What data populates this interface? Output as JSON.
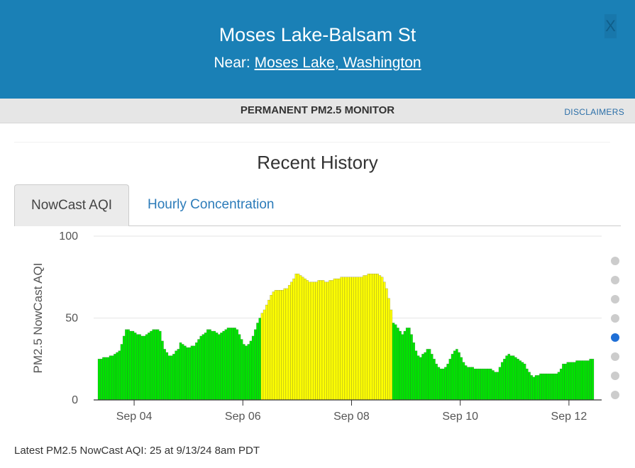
{
  "header": {
    "title": "Moses Lake-Balsam St",
    "near_prefix": "Near:",
    "near_link": "Moses Lake, Washington",
    "close_label": "X"
  },
  "subheader": {
    "monitor_type": "PERMANENT PM2.5 MONITOR",
    "disclaimers": "DISCLAIMERS"
  },
  "section_title": "Recent History",
  "tabs": [
    {
      "label": "NowCast AQI",
      "active": true
    },
    {
      "label": "Hourly Concentration",
      "active": false
    }
  ],
  "carousel": {
    "count": 8,
    "active_index": 4
  },
  "colors": {
    "header_bg": "#1a80b6",
    "good": "#00e400",
    "moderate": "#ffff00",
    "active_dot": "#1f6fd6"
  },
  "chart_data": {
    "type": "bar",
    "ylabel": "PM2.5 NowCast AQI",
    "ylim": [
      0,
      100
    ],
    "yticks": [
      0,
      50,
      100
    ],
    "x_tick_labels": [
      "Sep 04",
      "Sep 06",
      "Sep 08",
      "Sep 10",
      "Sep 12"
    ],
    "x_tick_positions": [
      16,
      64,
      112,
      160,
      208
    ],
    "grid": true,
    "legend": "none",
    "series": [
      {
        "values": [
          25,
          25,
          26,
          26,
          26,
          27,
          27,
          28,
          29,
          30,
          34,
          39,
          43,
          43,
          42,
          42,
          41,
          40,
          40,
          39,
          39,
          40,
          41,
          42,
          43,
          43,
          43,
          42,
          36,
          31,
          29,
          27,
          27,
          28,
          30,
          31,
          35,
          34,
          33,
          32,
          32,
          33,
          33,
          35,
          37,
          39,
          40,
          41,
          43,
          43,
          42,
          42,
          41,
          40,
          41,
          42,
          43,
          44,
          44,
          44,
          44,
          43,
          40,
          37,
          34,
          33,
          34,
          36,
          39,
          43,
          47,
          50,
          53,
          55,
          58,
          61,
          64,
          66,
          67,
          67,
          67,
          67,
          68,
          68,
          70,
          72,
          74,
          77,
          77,
          76,
          75,
          74,
          73,
          72,
          72,
          72,
          72,
          73,
          73,
          73,
          72,
          72,
          73,
          73,
          74,
          74,
          74,
          75,
          75,
          75,
          75,
          75,
          75,
          75,
          75,
          75,
          75,
          76,
          76,
          77,
          77,
          77,
          77,
          77,
          76,
          75,
          72,
          68,
          62,
          55,
          47,
          46,
          44,
          42,
          40,
          42,
          44,
          44,
          40,
          35,
          30,
          27,
          26,
          28,
          29,
          31,
          31,
          28,
          25,
          22,
          20,
          19,
          19,
          20,
          22,
          25,
          28,
          30,
          31,
          29,
          26,
          23,
          21,
          20,
          20,
          20,
          19,
          19,
          19,
          19,
          19,
          19,
          19,
          19,
          18,
          17,
          17,
          20,
          23,
          25,
          27,
          28,
          27,
          27,
          26,
          25,
          24,
          23,
          22,
          19,
          17,
          15,
          14,
          15,
          15,
          16,
          16,
          16,
          16,
          16,
          16,
          16,
          16,
          17,
          19,
          22,
          22,
          23,
          23,
          23,
          23,
          24,
          24,
          24,
          24,
          24,
          24,
          25,
          25
        ]
      }
    ],
    "categories": {
      "Good": {
        "range": [
          0,
          50
        ],
        "color": "#00e400"
      },
      "Moderate": {
        "range": [
          51,
          100
        ],
        "color": "#ffff00"
      }
    }
  },
  "latest": "Latest PM2.5 NowCast AQI: 25 at 9/13/24 8am PDT"
}
